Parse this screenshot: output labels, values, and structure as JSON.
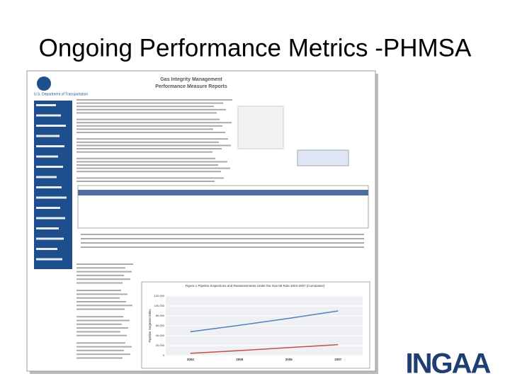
{
  "title": "Ongoing Performance Metrics -PHMSA",
  "screenshot": {
    "agency": "U.S. Department of Transportation",
    "heading": [
      "Gas Integrity Management",
      "Performance Measure Reports"
    ],
    "figure": {
      "title": "Figure 1 Pipeline Inspections and Reassessments Under the Gas IM Rule 2004-2007 (Cumulative)",
      "y_label": "Pipeline Segment Miles",
      "x": [
        "2004",
        "2005",
        "2006",
        "2007"
      ],
      "ylim": [
        0,
        120000
      ],
      "yticks": [
        0,
        {
          "value": 20000,
          "label": "20,000"
        },
        {
          "value": 40000,
          "label": "40,000"
        },
        {
          "value": 60000,
          "label": "60,000"
        },
        {
          "value": 80000,
          "label": "80,000"
        },
        {
          "value": 100000,
          "label": "100,000"
        },
        {
          "value": 120000,
          "label": "120,000"
        }
      ],
      "series": [
        {
          "color": "#4f81bd",
          "values": [
            48000,
            61000,
            75000,
            90000
          ]
        },
        {
          "color": "#c0504d",
          "values": [
            4500,
            10000,
            16000,
            22000
          ]
        }
      ]
    }
  },
  "logo": "INGAA"
}
